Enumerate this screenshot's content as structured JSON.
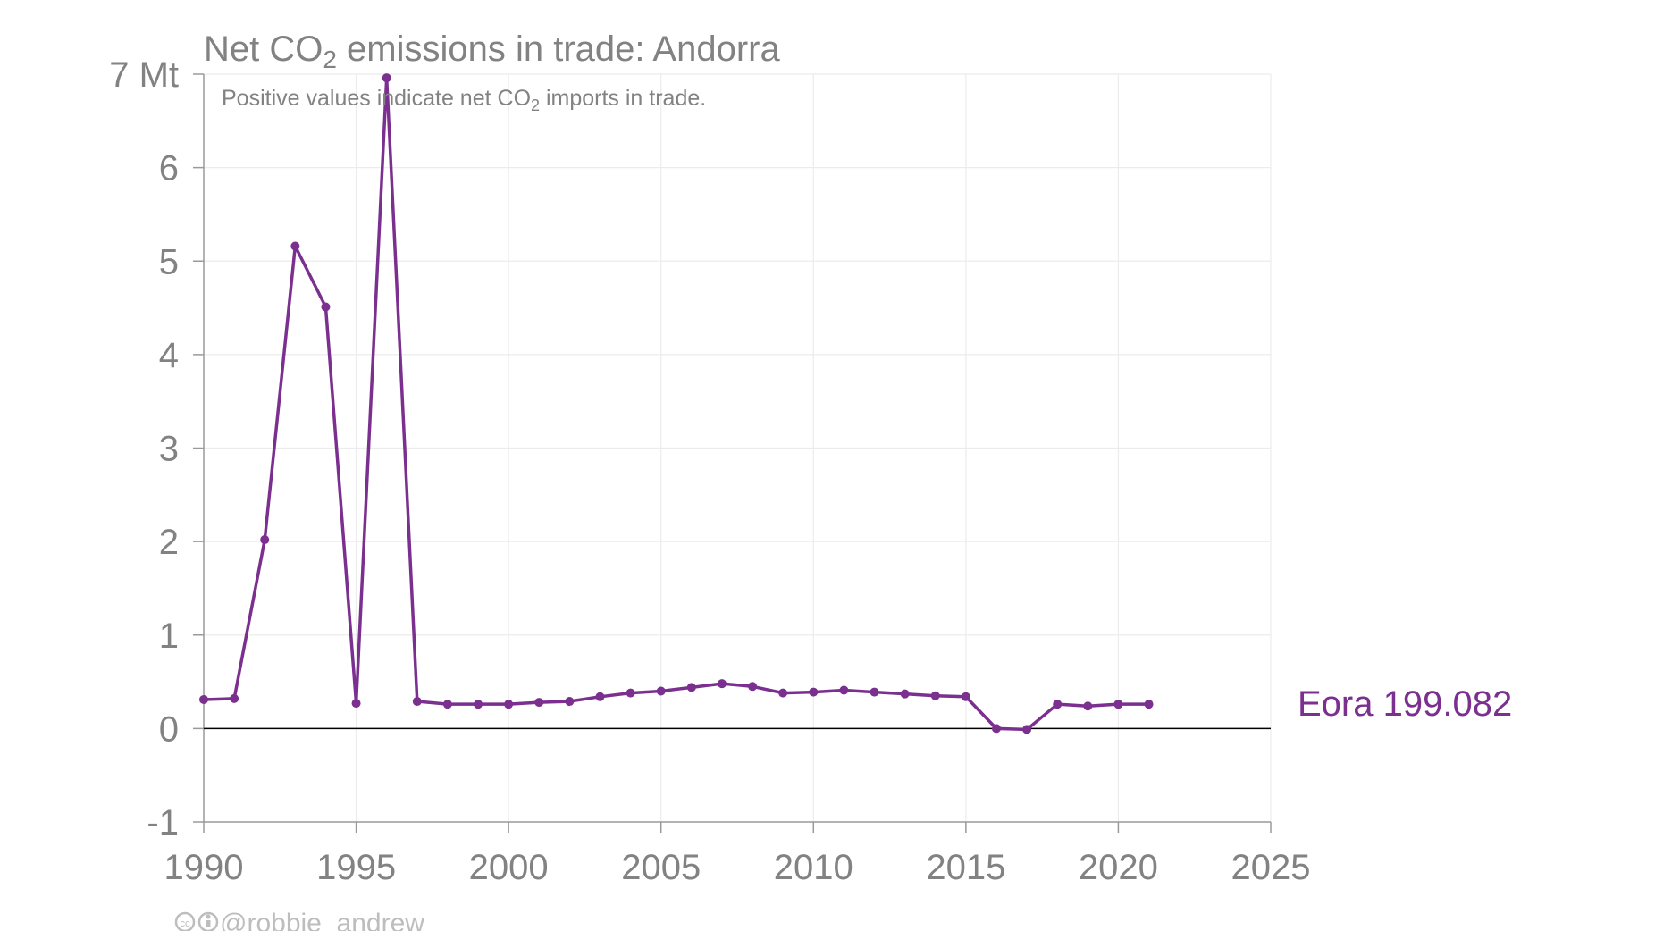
{
  "chart_data": {
    "type": "line",
    "title_prefix": "Net CO",
    "title_sub": "2",
    "title_suffix": " emissions in trade: Andorra",
    "subtitle_prefix": "Positive values indicate net CO",
    "subtitle_sub": "2",
    "subtitle_suffix": " imports in trade.",
    "y_unit": "Mt",
    "xlim": [
      1990,
      2025
    ],
    "ylim": [
      -1,
      7
    ],
    "x_ticks": [
      1990,
      1995,
      2000,
      2005,
      2010,
      2015,
      2020,
      2025
    ],
    "y_ticks": [
      -1,
      0,
      1,
      2,
      3,
      4,
      5,
      6,
      7
    ],
    "series": [
      {
        "name": "Eora 199.082",
        "color": "#7b2f8f",
        "x": [
          1990,
          1991,
          1992,
          1993,
          1994,
          1995,
          1996,
          1997,
          1998,
          1999,
          2000,
          2001,
          2002,
          2003,
          2004,
          2005,
          2006,
          2007,
          2008,
          2009,
          2010,
          2011,
          2012,
          2013,
          2014,
          2015,
          2016,
          2017,
          2018,
          2019,
          2020,
          2021
        ],
        "values": [
          0.31,
          0.32,
          2.02,
          5.16,
          4.51,
          0.27,
          6.96,
          0.29,
          0.26,
          0.26,
          0.26,
          0.28,
          0.29,
          0.34,
          0.38,
          0.4,
          0.44,
          0.48,
          0.45,
          0.38,
          0.39,
          0.41,
          0.39,
          0.37,
          0.35,
          0.34,
          0.0,
          -0.01,
          0.26,
          0.24,
          0.26,
          0.26
        ]
      }
    ]
  },
  "credit": {
    "icons": "cc-by-icon",
    "text": "@robbie_andrew"
  }
}
